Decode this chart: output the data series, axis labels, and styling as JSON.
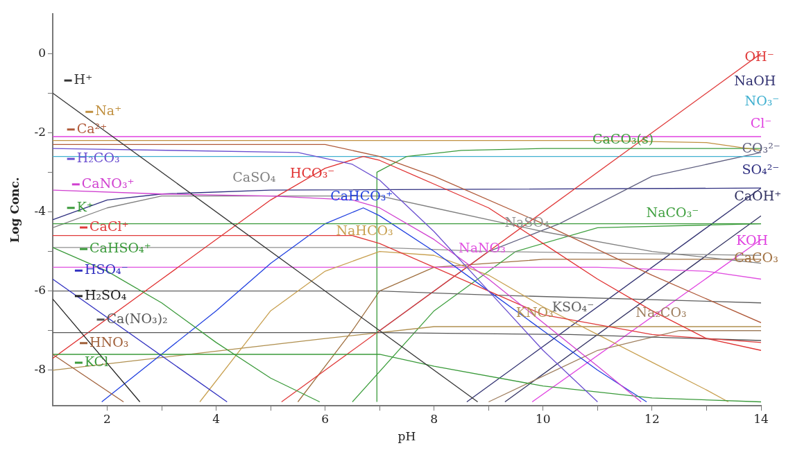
{
  "chart_data": {
    "type": "line",
    "xlabel": "pH",
    "ylabel": "Log Conc.",
    "marker": "none",
    "grid": false,
    "legend": "left",
    "xlim": [
      1,
      14
    ],
    "ylim": [
      -8.9,
      1
    ],
    "xticks": [
      2,
      {
        "value": 3,
        "label": null
      },
      4,
      {
        "value": 5,
        "label": null
      },
      6,
      {
        "value": 7,
        "label": null
      },
      8,
      {
        "value": 9,
        "label": null
      },
      10,
      {
        "value": 11,
        "label": null
      },
      12,
      {
        "value": 13,
        "label": null
      },
      14
    ],
    "yticks": [
      {
        "value": -8,
        "label": "-8"
      },
      {
        "value": -7,
        "label": null
      },
      {
        "value": -6,
        "label": "-6"
      },
      {
        "value": -5,
        "label": null
      },
      {
        "value": -4,
        "label": "-4"
      },
      {
        "value": -3,
        "label": null
      },
      {
        "value": -2,
        "label": "-2"
      },
      {
        "value": -1,
        "label": null
      },
      0
    ],
    "series": [
      {
        "name": "H⁺",
        "color": "#333333",
        "x": [
          1,
          8.8
        ],
        "values": [
          -1,
          -8.8
        ]
      },
      {
        "name": "Na⁺",
        "color": "#c09040",
        "x": [
          1,
          11,
          13,
          14
        ],
        "values": [
          -2.2,
          -2.2,
          -2.25,
          -2.45
        ]
      },
      {
        "name": "Ca²⁺",
        "color": "#b05a3a",
        "x": [
          1,
          6,
          7,
          8,
          10,
          12,
          14
        ],
        "values": [
          -2.3,
          -2.3,
          -2.6,
          -3.1,
          -4.3,
          -5.6,
          -6.8
        ]
      },
      {
        "name": "H₂CO₃",
        "color": "#6a4fd0",
        "x": [
          1,
          5.5,
          6.5,
          7,
          8,
          9,
          10,
          11
        ],
        "values": [
          -2.4,
          -2.5,
          -2.8,
          -3.2,
          -4.5,
          -6,
          -7.5,
          -8.8
        ]
      },
      {
        "name": "CaNO₃⁺",
        "color": "#d040d0",
        "x": [
          1,
          3,
          5,
          6.5,
          7,
          8,
          9,
          10,
          11,
          11.8
        ],
        "values": [
          -3.45,
          -3.55,
          -3.6,
          -3.7,
          -3.9,
          -4.7,
          -5.7,
          -6.8,
          -7.9,
          -8.8
        ]
      },
      {
        "name": "K⁺",
        "color": "#3a9a3a",
        "x": [
          1,
          14
        ],
        "values": [
          -4.3,
          -4.3
        ]
      },
      {
        "name": "CaCl⁺",
        "color": "#e03a3a",
        "x": [
          1,
          6.5,
          7,
          8,
          10,
          12,
          14
        ],
        "values": [
          -4.6,
          -4.6,
          -4.8,
          -5.4,
          -6.6,
          -7.1,
          -7.3
        ]
      },
      {
        "name": "CaHSO₄⁺",
        "color": "#3a9a3a",
        "x": [
          1,
          2,
          3,
          4,
          5,
          5.9
        ],
        "values": [
          -4.9,
          -5.5,
          -6.3,
          -7.3,
          -8.2,
          -8.8
        ]
      },
      {
        "name": "HSO₄⁻",
        "color": "#3030c0",
        "x": [
          1,
          4.2
        ],
        "values": [
          -5.7,
          -8.8
        ]
      },
      {
        "name": "H₂SO₄",
        "color": "#222222",
        "x": [
          1,
          2.6
        ],
        "values": [
          -6.2,
          -8.8
        ]
      },
      {
        "name": "Ca(NO₃)₂",
        "color": "#555555",
        "x": [
          1,
          7,
          10.5,
          14
        ],
        "values": [
          -7.05,
          -7.05,
          -7.1,
          -7.25
        ]
      },
      {
        "name": "HNO₃",
        "color": "#a0603a",
        "x": [
          1,
          2.3
        ],
        "values": [
          -7.6,
          -8.8
        ]
      },
      {
        "name": "KCl",
        "color": "#3a9a3a",
        "x": [
          1,
          7,
          8,
          10,
          12,
          14
        ],
        "values": [
          -7.6,
          -7.6,
          -7.9,
          -8.4,
          -8.7,
          -8.8
        ]
      },
      {
        "name": "HCO₃⁻",
        "color": "#e03030",
        "x": [
          1,
          3,
          5,
          6,
          6.7,
          7,
          8,
          9,
          10,
          11,
          12,
          13,
          14
        ],
        "values": [
          -7.7,
          -5.7,
          -3.7,
          -2.9,
          -2.6,
          -2.7,
          -3.3,
          -3.9,
          -4.8,
          -5.7,
          -6.5,
          -7.2,
          -7.5
        ]
      },
      {
        "name": "CaSO₄",
        "color": "#808080",
        "x": [
          1,
          2,
          3,
          7,
          8,
          10,
          12,
          14
        ],
        "values": [
          -4.4,
          -3.9,
          -3.6,
          -3.6,
          -3.9,
          -4.5,
          -5,
          -5.3
        ]
      },
      {
        "name": "CaHCO₃⁺",
        "color": "#2040e0",
        "x": [
          1.9,
          4,
          5,
          6,
          6.7,
          7,
          8,
          9,
          10,
          11,
          11.9
        ],
        "values": [
          -8.8,
          -6.5,
          -5.3,
          -4.3,
          -3.9,
          -4.1,
          -5,
          -6,
          -7,
          -8,
          -8.8
        ]
      },
      {
        "name": "NaHCO₃",
        "color": "#c8a050",
        "x": [
          3.7,
          5,
          6,
          7,
          8,
          9,
          10,
          11,
          12,
          13,
          13.4
        ],
        "values": [
          -8.8,
          -6.5,
          -5.5,
          -5,
          -5.1,
          -5.6,
          -6.4,
          -7.1,
          -7.8,
          -8.5,
          -8.8
        ]
      },
      {
        "name": "NaNO₃",
        "color": "#e050e0",
        "x": [
          1,
          11,
          13,
          14
        ],
        "values": [
          -5.4,
          -5.4,
          -5.5,
          -5.7
        ]
      },
      {
        "name": "NaSO₄",
        "color": "#909090",
        "x": [
          1,
          7,
          9,
          14
        ],
        "values": [
          -4.9,
          -4.9,
          -5,
          -5.1
        ]
      },
      {
        "name": "KSO₄⁻",
        "color": "#606060",
        "x": [
          1,
          7,
          9,
          14
        ],
        "values": [
          -6,
          -6,
          -6.1,
          -6.3
        ]
      },
      {
        "name": "KNO₃",
        "color": "#b09050",
        "x": [
          1,
          6,
          8,
          14
        ],
        "values": [
          -8,
          -7.2,
          -6.9,
          -6.9
        ]
      },
      {
        "name": "Na₂CO₃",
        "color": "#a08060",
        "x": [
          9,
          11,
          12.5,
          14
        ],
        "values": [
          -8.8,
          -7.5,
          -7,
          -7
        ]
      },
      {
        "name": "CaCO₃(s)",
        "color": "#3a9a3a",
        "x": [
          6.95,
          6.95,
          7.5,
          8.5,
          10,
          14
        ],
        "values": [
          -8.8,
          -3,
          -2.6,
          -2.45,
          -2.4,
          -2.4
        ]
      },
      {
        "name": "OH⁻",
        "color": "#e03a3a",
        "x": [
          5.2,
          14
        ],
        "values": [
          -8.8,
          0
        ]
      },
      {
        "name": "NaOH",
        "color": "#303070",
        "x": [
          8.6,
          14
        ],
        "values": [
          -8.8,
          -3.4
        ]
      },
      {
        "name": "NO₃⁻",
        "color": "#40b0d0",
        "x": [
          1,
          14
        ],
        "values": [
          -2.6,
          -2.6
        ]
      },
      {
        "name": "Cl⁻",
        "color": "#e040e0",
        "x": [
          1,
          14
        ],
        "values": [
          -2.1,
          -2.1
        ]
      },
      {
        "name": "CO₃²⁻",
        "color": "#606080",
        "x": [
          7,
          9,
          10.3,
          12,
          14
        ],
        "values": [
          -7,
          -5,
          -4.3,
          -3.1,
          -2.5
        ]
      },
      {
        "name": "SO₄²⁻",
        "color": "#303080",
        "x": [
          1,
          2,
          3,
          5,
          14
        ],
        "values": [
          -4.2,
          -3.7,
          -3.55,
          -3.45,
          -3.4
        ]
      },
      {
        "name": "CaOH⁺",
        "color": "#303060",
        "x": [
          9.3,
          14
        ],
        "values": [
          -8.8,
          -4.1
        ]
      },
      {
        "name": "NaCO₃⁻",
        "color": "#40a040",
        "x": [
          6.5,
          8,
          9.5,
          11,
          14
        ],
        "values": [
          -8.8,
          -6.5,
          -5,
          -4.4,
          -4.3
        ]
      },
      {
        "name": "KOH",
        "color": "#e040e0",
        "x": [
          9.8,
          14
        ],
        "values": [
          -8.8,
          -4.7
        ]
      },
      {
        "name": "CaCO₃",
        "color": "#a07040",
        "x": [
          5.5,
          6.5,
          7,
          8,
          10,
          14
        ],
        "values": [
          -8.8,
          -7,
          -6,
          -5.4,
          -5.2,
          -5.2
        ]
      }
    ]
  }
}
